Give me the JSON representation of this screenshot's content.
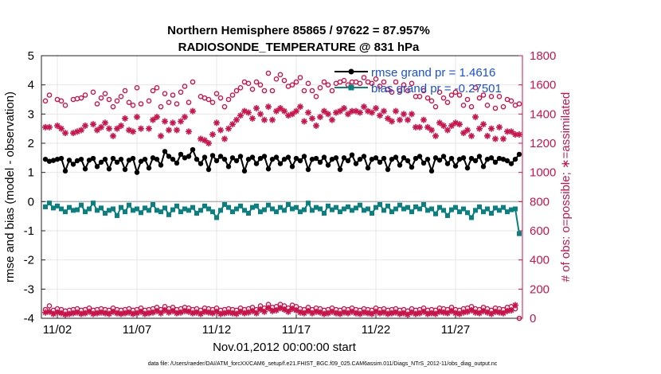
{
  "chart_data": {
    "type": "line",
    "title_line1": "Northern Hemisphere 85865 / 97622 = 87.957%",
    "title_line2": "RADIOSONDE_TEMPERATURE @ 831 hPa",
    "ylabel_left": "rmse and bias (model - observation)",
    "ylabel_right": "# of obs: o=possible; ∗=assimilated",
    "xlabel": "Nov.01,2012 00:00:00 start",
    "footnote": "data file: /Users/raeder/DAI/ATM_forcXX/CAM6_setup/f.e21.FHIST_BGC.f09_025.CAM6assim.011/Diags_NTrS_2012-11/obs_diag_output.nc",
    "xlim": [
      0.5,
      30.7
    ],
    "ylim_left": [
      -4,
      5
    ],
    "ylim_right": [
      0,
      1800
    ],
    "x_ticks": [
      1.5,
      6.5,
      11.5,
      16.5,
      21.5,
      26.5
    ],
    "x_tick_labels": [
      "11/02",
      "11/07",
      "11/12",
      "11/17",
      "11/22",
      "11/27"
    ],
    "y_ticks_left": [
      "-4",
      "-3",
      "-2",
      "-1",
      "0",
      "1",
      "2",
      "3",
      "4",
      "5"
    ],
    "y_ticks_right": [
      "0",
      "200",
      "400",
      "600",
      "800",
      "1000",
      "1200",
      "1400",
      "1600",
      "1800"
    ],
    "legend": [
      "rmse grand pr = 1.4616",
      "bias grand pr = -0.27501"
    ],
    "colors": {
      "rmse": "#000000",
      "bias": "#0a8080",
      "obs": "#c8144b",
      "legend_text": "#1a50d8",
      "zero_line": "#b4b4b4"
    },
    "x": [
      0.75,
      1.0,
      1.25,
      1.5,
      1.75,
      2.0,
      2.25,
      2.5,
      2.75,
      3.0,
      3.25,
      3.5,
      3.75,
      4.0,
      4.25,
      4.5,
      4.75,
      5.0,
      5.25,
      5.5,
      5.75,
      6.0,
      6.25,
      6.5,
      6.75,
      7.0,
      7.25,
      7.5,
      7.75,
      8.0,
      8.25,
      8.5,
      8.75,
      9.0,
      9.25,
      9.5,
      9.75,
      10.0,
      10.25,
      10.5,
      10.75,
      11.0,
      11.25,
      11.5,
      11.75,
      12.0,
      12.25,
      12.5,
      12.75,
      13.0,
      13.25,
      13.5,
      13.75,
      14.0,
      14.25,
      14.5,
      14.75,
      15.0,
      15.25,
      15.5,
      15.75,
      16.0,
      16.25,
      16.5,
      16.75,
      17.0,
      17.25,
      17.5,
      17.75,
      18.0,
      18.25,
      18.5,
      18.75,
      19.0,
      19.25,
      19.5,
      19.75,
      20.0,
      20.25,
      20.5,
      20.75,
      21.0,
      21.25,
      21.5,
      21.75,
      22.0,
      22.25,
      22.5,
      22.75,
      23.0,
      23.25,
      23.5,
      23.75,
      24.0,
      24.25,
      24.5,
      24.75,
      25.0,
      25.25,
      25.5,
      25.75,
      26.0,
      26.25,
      26.5,
      26.75,
      27.0,
      27.25,
      27.5,
      27.75,
      28.0,
      28.25,
      28.5,
      28.75,
      29.0,
      29.25,
      29.5,
      29.75,
      30.0,
      30.25,
      30.5
    ],
    "series": [
      {
        "name": "rmse",
        "marker": "filled-circle",
        "axis": "left",
        "values": [
          1.45,
          1.38,
          1.41,
          1.45,
          1.48,
          1.05,
          1.42,
          1.28,
          1.4,
          1.45,
          1.12,
          1.42,
          1.48,
          1.2,
          1.35,
          1.45,
          1.12,
          1.48,
          1.35,
          1.45,
          1.1,
          1.42,
          1.48,
          1.0,
          1.38,
          1.45,
          1.15,
          1.5,
          1.45,
          1.25,
          1.72,
          1.55,
          1.45,
          1.32,
          1.62,
          1.5,
          1.55,
          1.78,
          1.45,
          1.3,
          1.52,
          1.1,
          1.58,
          1.4,
          1.55,
          1.45,
          1.2,
          1.5,
          1.4,
          1.55,
          1.05,
          1.45,
          1.52,
          1.3,
          1.48,
          1.55,
          1.12,
          1.45,
          1.52,
          1.3,
          1.45,
          1.52,
          1.2,
          1.48,
          1.4,
          1.55,
          1.1,
          1.45,
          1.48,
          1.35,
          1.52,
          1.25,
          1.45,
          1.5,
          1.1,
          1.5,
          1.4,
          1.6,
          1.3,
          1.45,
          1.55,
          1.15,
          1.45,
          1.5,
          1.35,
          1.48,
          1.1,
          1.45,
          1.52,
          1.25,
          1.5,
          1.4,
          1.18,
          1.48,
          1.55,
          1.32,
          1.45,
          1.05,
          1.5,
          1.42,
          1.55,
          1.3,
          1.48,
          1.22,
          1.45,
          1.5,
          1.15,
          1.48,
          1.4,
          1.55,
          1.2,
          1.45,
          1.5,
          1.35,
          1.48,
          1.45,
          1.4,
          1.3,
          1.45,
          1.62
        ]
      },
      {
        "name": "bias",
        "marker": "filled-square",
        "axis": "left",
        "values": [
          -0.18,
          -0.05,
          -0.22,
          -0.15,
          -0.25,
          -0.35,
          -0.2,
          -0.3,
          -0.28,
          -0.12,
          -0.35,
          -0.25,
          -0.05,
          -0.3,
          -0.22,
          -0.4,
          -0.3,
          -0.25,
          -0.48,
          -0.2,
          -0.35,
          -0.12,
          -0.3,
          -0.25,
          -0.38,
          -0.22,
          -0.3,
          -0.1,
          -0.3,
          -0.35,
          -0.22,
          -0.45,
          -0.28,
          -0.15,
          -0.35,
          -0.25,
          -0.3,
          -0.2,
          -0.4,
          -0.3,
          -0.15,
          -0.25,
          -0.35,
          -0.55,
          -0.3,
          -0.1,
          -0.2,
          -0.35,
          -0.25,
          -0.15,
          -0.3,
          -0.4,
          -0.2,
          -0.15,
          -0.35,
          -0.28,
          -0.12,
          -0.25,
          -0.35,
          -0.2,
          -0.3,
          -0.1,
          -0.25,
          -0.2,
          -0.35,
          -0.28,
          -0.05,
          -0.3,
          -0.2,
          -0.25,
          -0.4,
          -0.15,
          -0.28,
          -0.2,
          -0.35,
          -0.25,
          -0.18,
          -0.3,
          -0.22,
          -0.12,
          -0.3,
          -0.25,
          -0.4,
          -0.2,
          -0.1,
          -0.3,
          -0.15,
          -0.35,
          -0.25,
          -0.12,
          -0.25,
          -0.2,
          -0.35,
          -0.18,
          -0.25,
          -0.1,
          -0.3,
          -0.25,
          -0.42,
          -0.2,
          -0.3,
          -0.48,
          -0.28,
          -0.2,
          -0.35,
          -0.25,
          -0.38,
          -0.55,
          -0.3,
          -0.18,
          -0.35,
          -0.25,
          -0.4,
          -0.22,
          -0.3,
          -0.2,
          -0.35,
          -0.28,
          -0.25,
          -1.1
        ]
      },
      {
        "name": "possible",
        "marker": "open-circle",
        "axis": "right",
        "values": [
          1490,
          1530,
          null,
          1500,
          1490,
          1460,
          null,
          1500,
          1505,
          1510,
          1530,
          null,
          1550,
          1470,
          1510,
          1540,
          1500,
          1450,
          1490,
          1520,
          1560,
          1480,
          1460,
          1580,
          1470,
          null,
          1490,
          1560,
          1580,
          1450,
          1540,
          1480,
          1530,
          1470,
          1550,
          1590,
          1480,
          1620,
          null,
          1520,
          1510,
          1500,
          1480,
          1540,
          1510,
          1450,
          1500,
          1530,
          1560,
          1580,
          1620,
          1610,
          1570,
          1620,
          1600,
          1560,
          1680,
          1560,
          1640,
          1670,
          1630,
          1590,
          1600,
          1620,
          1650,
          1560,
          1610,
          1560,
          1520,
          1580,
          1620,
          1600,
          1560,
          1610,
          1620,
          1630,
          1600,
          1620,
          1620,
          1610,
          1650,
          1620,
          1610,
          1640,
          1590,
          1620,
          1570,
          1550,
          1620,
          1560,
          1600,
          1560,
          1610,
          1520,
          1520,
          1560,
          1510,
          1490,
          1450,
          1550,
          1510,
          1480,
          1530,
          1550,
          1530,
          1460,
          1500,
          1450,
          1580,
          1510,
          1530,
          1460,
          1520,
          1440,
          1520,
          1450,
          1500,
          1490,
          1460,
          1470
        ]
      },
      {
        "name": "assimilated",
        "marker": "asterisk",
        "axis": "right",
        "values": [
          1310,
          1310,
          null,
          1320,
          1300,
          1270,
          null,
          1270,
          1280,
          1290,
          1320,
          null,
          1330,
          1290,
          1310,
          1340,
          1300,
          1250,
          1300,
          1320,
          1370,
          1290,
          1280,
          1380,
          1300,
          null,
          1300,
          1360,
          1380,
          1250,
          1350,
          1290,
          1340,
          1290,
          1350,
          1380,
          1280,
          1420,
          null,
          1230,
          1220,
          1200,
          1260,
          1340,
          1290,
          1230,
          1300,
          1330,
          1360,
          1390,
          1420,
          1410,
          1370,
          1440,
          1400,
          1360,
          1450,
          1360,
          1420,
          1440,
          1420,
          1390,
          1400,
          1420,
          1450,
          1350,
          1410,
          1370,
          1320,
          1380,
          1420,
          1400,
          1360,
          1410,
          1420,
          1440,
          1400,
          1420,
          1420,
          1410,
          1450,
          1420,
          1410,
          1440,
          1390,
          1420,
          1370,
          1350,
          1420,
          1360,
          1400,
          1360,
          1400,
          1310,
          1310,
          1360,
          1310,
          1290,
          1250,
          1340,
          1320,
          1290,
          1320,
          1340,
          1330,
          1270,
          1290,
          1250,
          1380,
          1300,
          1330,
          1250,
          1300,
          1230,
          1310,
          1230,
          1280,
          1280,
          1260,
          1260
        ]
      }
    ],
    "obs_bottom_note": "lower band of ∗/o markers near 40-100 obs (separate series)",
    "lower_possible": [
      60,
      85,
      55,
      65,
      60,
      50,
      55,
      60,
      65,
      55,
      60,
      70,
      55,
      60,
      65,
      60,
      55,
      70,
      60,
      55,
      60,
      65,
      55,
      60,
      70,
      55,
      60,
      65,
      75,
      60,
      80,
      65,
      75,
      60,
      65,
      75,
      70,
      60,
      65,
      55,
      70,
      65,
      60,
      70,
      55,
      60,
      65,
      60,
      55,
      70,
      60,
      65,
      75,
      60,
      85,
      70,
      95,
      75,
      80,
      95,
      85,
      70,
      90,
      80,
      65,
      60,
      75,
      60,
      70,
      65,
      55,
      60,
      70,
      60,
      55,
      65,
      60,
      70,
      60,
      55,
      65,
      60,
      55,
      70,
      60,
      65,
      55,
      60,
      65,
      55,
      60,
      50,
      65,
      55,
      60,
      70,
      55,
      60,
      55,
      70,
      65,
      60,
      75,
      60,
      55,
      65,
      70,
      80,
      65,
      60,
      75,
      65,
      55,
      70,
      65,
      60,
      75,
      80,
      65,
      0
    ],
    "lower_assimilated": [
      40,
      45,
      30,
      40,
      35,
      25,
      30,
      35,
      40,
      30,
      35,
      45,
      30,
      35,
      40,
      35,
      30,
      45,
      35,
      30,
      35,
      40,
      30,
      35,
      45,
      30,
      35,
      40,
      50,
      35,
      55,
      40,
      50,
      35,
      40,
      50,
      45,
      35,
      40,
      30,
      45,
      40,
      35,
      45,
      30,
      35,
      40,
      35,
      30,
      45,
      35,
      40,
      50,
      35,
      60,
      45,
      70,
      50,
      55,
      70,
      60,
      45,
      65,
      55,
      40,
      35,
      50,
      35,
      45,
      40,
      30,
      35,
      45,
      35,
      30,
      40,
      35,
      45,
      35,
      30,
      40,
      35,
      30,
      45,
      35,
      40,
      30,
      35,
      40,
      30,
      35,
      25,
      40,
      30,
      35,
      45,
      30,
      35,
      30,
      45,
      40,
      35,
      50,
      35,
      30,
      40,
      45,
      55,
      40,
      35,
      50,
      40,
      30,
      45,
      40,
      35,
      50,
      55,
      90,
      null
    ]
  }
}
